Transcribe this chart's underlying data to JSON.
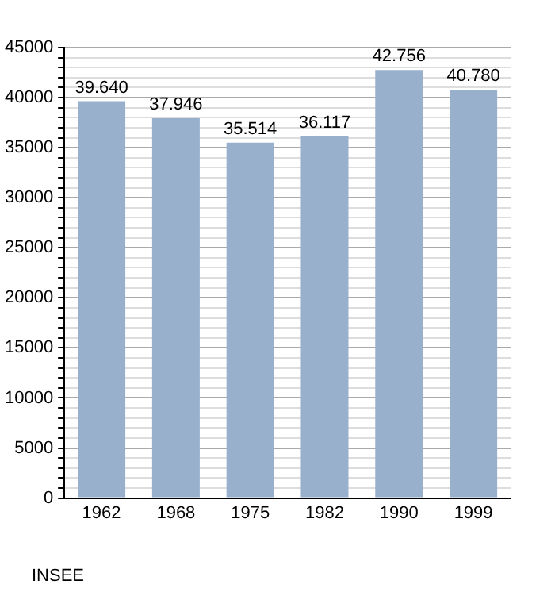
{
  "chart_data": {
    "type": "bar",
    "categories": [
      "1962",
      "1968",
      "1975",
      "1982",
      "1990",
      "1999"
    ],
    "values": [
      39640,
      37946,
      35514,
      36117,
      42756,
      40780
    ],
    "value_labels": [
      "39.640",
      "37.946",
      "35.514",
      "36.117",
      "42.756",
      "40.780"
    ],
    "color": "#98b0cc",
    "ylim": [
      0,
      45000
    ],
    "yticks": [
      0,
      {
        "value": 1000,
        "label": null
      },
      {
        "value": 2000,
        "label": null
      },
      {
        "value": 3000,
        "label": null
      },
      {
        "value": 4000,
        "label": null
      },
      5000,
      {
        "value": 6000,
        "label": null
      },
      {
        "value": 7000,
        "label": null
      },
      {
        "value": 8000,
        "label": null
      },
      {
        "value": 9000,
        "label": null
      },
      10000,
      {
        "value": 11000,
        "label": null
      },
      {
        "value": 12000,
        "label": null
      },
      {
        "value": 13000,
        "label": null
      },
      {
        "value": 14000,
        "label": null
      },
      15000,
      {
        "value": 16000,
        "label": null
      },
      {
        "value": 17000,
        "label": null
      },
      {
        "value": 18000,
        "label": null
      },
      {
        "value": 19000,
        "label": null
      },
      20000,
      {
        "value": 21000,
        "label": null
      },
      {
        "value": 22000,
        "label": null
      },
      {
        "value": 23000,
        "label": null
      },
      {
        "value": 24000,
        "label": null
      },
      25000,
      {
        "value": 26000,
        "label": null
      },
      {
        "value": 27000,
        "label": null
      },
      {
        "value": 28000,
        "label": null
      },
      {
        "value": 29000,
        "label": null
      },
      30000,
      {
        "value": 31000,
        "label": null
      },
      {
        "value": 32000,
        "label": null
      },
      {
        "value": 33000,
        "label": null
      },
      {
        "value": 34000,
        "label": null
      },
      35000,
      {
        "value": 36000,
        "label": null
      },
      {
        "value": 37000,
        "label": null
      },
      {
        "value": 38000,
        "label": null
      },
      {
        "value": 39000,
        "label": null
      },
      40000,
      {
        "value": 41000,
        "label": null
      },
      {
        "value": 42000,
        "label": null
      },
      {
        "value": 43000,
        "label": null
      },
      {
        "value": 44000,
        "label": null
      },
      45000
    ],
    "grid": "y",
    "annotations": [
      "INSEE"
    ]
  }
}
